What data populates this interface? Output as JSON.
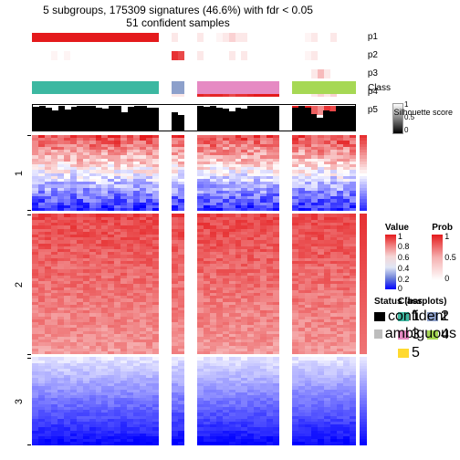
{
  "title_line1": "5 subgroups, 175309 signatures (46.6%) with fdr < 0.05",
  "title_line2": "51 confident samples",
  "n_cols": 51,
  "gaps": [
    20,
    21,
    24,
    25,
    39,
    40
  ],
  "colors": {
    "class_palette": [
      "#3cb8a1",
      "#8da0cb",
      "#e68ac3",
      "#a6d854",
      "#ffd92f"
    ],
    "white": "#ffffff",
    "black": "#000000",
    "ambiguous": "#bdbdbd"
  },
  "prob_tracks": [
    {
      "label": "p1",
      "vals": [
        1,
        1,
        1,
        1,
        1,
        1,
        1,
        1,
        1,
        1,
        1,
        1,
        1,
        1,
        1,
        1,
        1,
        1,
        1,
        1,
        0,
        0.3,
        0.1,
        0,
        0,
        0,
        0.1,
        0,
        0,
        0.05,
        0.1,
        0.2,
        0.1,
        0.1,
        0,
        0,
        0,
        0,
        0,
        0,
        0,
        0,
        0,
        0.05,
        0.1,
        0,
        0,
        0.1,
        0,
        0,
        0
      ]
    },
    {
      "label": "p2",
      "vals": [
        0,
        0,
        0,
        0.05,
        0,
        0.05,
        0,
        0,
        0,
        0,
        0,
        0,
        0,
        0,
        0,
        0,
        0,
        0,
        0,
        0,
        0,
        0.9,
        0.9,
        0.8,
        0,
        0,
        0.1,
        0,
        0,
        0,
        0,
        0.1,
        0,
        0.1,
        0,
        0,
        0,
        0,
        0,
        0,
        0,
        0,
        0,
        0.05,
        0.1,
        0,
        0,
        0,
        0,
        0,
        0
      ]
    },
    {
      "label": "p3",
      "vals": [
        0,
        0,
        0,
        0,
        0,
        0,
        0,
        0,
        0,
        0,
        0,
        0,
        0,
        0,
        0,
        0,
        0,
        0,
        0,
        0,
        0,
        0,
        0,
        0,
        0,
        0,
        0,
        0,
        0,
        0,
        0,
        0,
        0,
        0,
        0,
        0,
        0,
        0,
        0,
        0,
        0,
        0,
        0,
        0,
        0.1,
        0.3,
        0.1,
        0,
        0,
        0,
        0
      ]
    },
    {
      "label": "p4",
      "vals": [
        0,
        0,
        0,
        0,
        0,
        0,
        0,
        0,
        0,
        0,
        0,
        0,
        0,
        0,
        0,
        0,
        0,
        0,
        0,
        0,
        0,
        0,
        0.1,
        0.1,
        0,
        0.95,
        0.95,
        0.9,
        0.95,
        0.95,
        0.9,
        0.8,
        0.9,
        0.9,
        0.95,
        1,
        1,
        1,
        1,
        0,
        0,
        0,
        0,
        0,
        0.1,
        0.2,
        0.1,
        0.2,
        0,
        0,
        0
      ]
    },
    {
      "label": "p5",
      "vals": [
        0,
        0,
        0,
        0,
        0,
        0,
        0,
        0,
        0,
        0,
        0,
        0,
        0,
        0,
        0,
        0,
        0,
        0,
        0,
        0,
        0,
        0,
        0,
        0,
        0,
        0,
        0,
        0,
        0,
        0,
        0,
        0,
        0,
        0,
        0,
        0,
        0,
        0,
        0,
        0,
        1,
        1,
        1,
        1,
        0.7,
        0.5,
        0.9,
        0.8,
        1,
        1,
        1
      ]
    }
  ],
  "class_track": {
    "label": "Class",
    "vals": [
      1,
      1,
      1,
      1,
      1,
      1,
      1,
      1,
      1,
      1,
      1,
      1,
      1,
      1,
      1,
      1,
      1,
      1,
      1,
      1,
      0,
      2,
      2,
      2,
      0,
      3,
      3,
      3,
      3,
      3,
      3,
      3,
      3,
      3,
      3,
      3,
      3,
      3,
      3,
      0,
      4,
      4,
      4,
      4,
      4,
      4,
      4,
      4,
      4,
      4,
      4
    ]
  },
  "silhouette": [
    0.92,
    0.95,
    0.9,
    0.78,
    0.95,
    0.82,
    0.92,
    0.97,
    0.97,
    0.97,
    0.9,
    0.85,
    0.97,
    0.95,
    0.72,
    0.93,
    0.97,
    0.95,
    0.88,
    0.9,
    0,
    0.6,
    0.7,
    0.6,
    0,
    0.97,
    0.97,
    0.92,
    0.97,
    0.9,
    0.85,
    0.75,
    0.88,
    0.85,
    0.95,
    0.97,
    0.97,
    0.97,
    0.97,
    0,
    0.9,
    0.9,
    0.95,
    0.88,
    0.65,
    0.5,
    0.8,
    0.75,
    0.97,
    0.97,
    0.97
  ],
  "silhouette_ambig": [
    0,
    0,
    0,
    0,
    0,
    0,
    0,
    0,
    0,
    0,
    0,
    0,
    0,
    0,
    0,
    0,
    0,
    0,
    0,
    0,
    0,
    0,
    0,
    0,
    0,
    0,
    0,
    0,
    0,
    0,
    0,
    0,
    0,
    0,
    0,
    0,
    0,
    0,
    0,
    0,
    0,
    0,
    0,
    0,
    0,
    0,
    0,
    0,
    0,
    0,
    0
  ],
  "silhouette_label": "Silhouette\nscore",
  "heatmap_row_groups": [
    {
      "label": "1",
      "n_rows": 26,
      "mode": "red_white_blue"
    },
    {
      "label": "2",
      "n_rows": 48,
      "mode": "red"
    },
    {
      "label": "3",
      "n_rows": 30,
      "mode": "blue"
    }
  ],
  "heatmap_reference_col": {
    "mode": "red_to_blue"
  },
  "legends": {
    "value": {
      "title": "Value",
      "ticks": [
        "1",
        "0.8",
        "0.6",
        "0.4",
        "0.2",
        "0"
      ],
      "gradient": [
        "#e41a1c",
        "#f08080",
        "#f5d6d6",
        "#e0e6f5",
        "#6b7fd8",
        "#0000ff"
      ]
    },
    "prob": {
      "title": "Prob",
      "ticks": [
        "1",
        "0.5",
        "0"
      ],
      "gradient": [
        "#e41a1c",
        "#f5b0b0",
        "#ffffff"
      ]
    },
    "status": {
      "title": "Status (barplots)",
      "items": [
        {
          "label": "confident",
          "color": "#000000"
        },
        {
          "label": "ambiguous",
          "color": "#bdbdbd"
        }
      ]
    },
    "class": {
      "title": "Class",
      "items": [
        {
          "label": "1",
          "color": "#3cb8a1"
        },
        {
          "label": "2",
          "color": "#8da0cb"
        },
        {
          "label": "3",
          "color": "#e68ac3"
        },
        {
          "label": "4",
          "color": "#a6d854"
        },
        {
          "label": "5",
          "color": "#ffd92f"
        }
      ]
    },
    "silh": {
      "ticks": [
        "1",
        "0.5",
        "0"
      ]
    }
  }
}
